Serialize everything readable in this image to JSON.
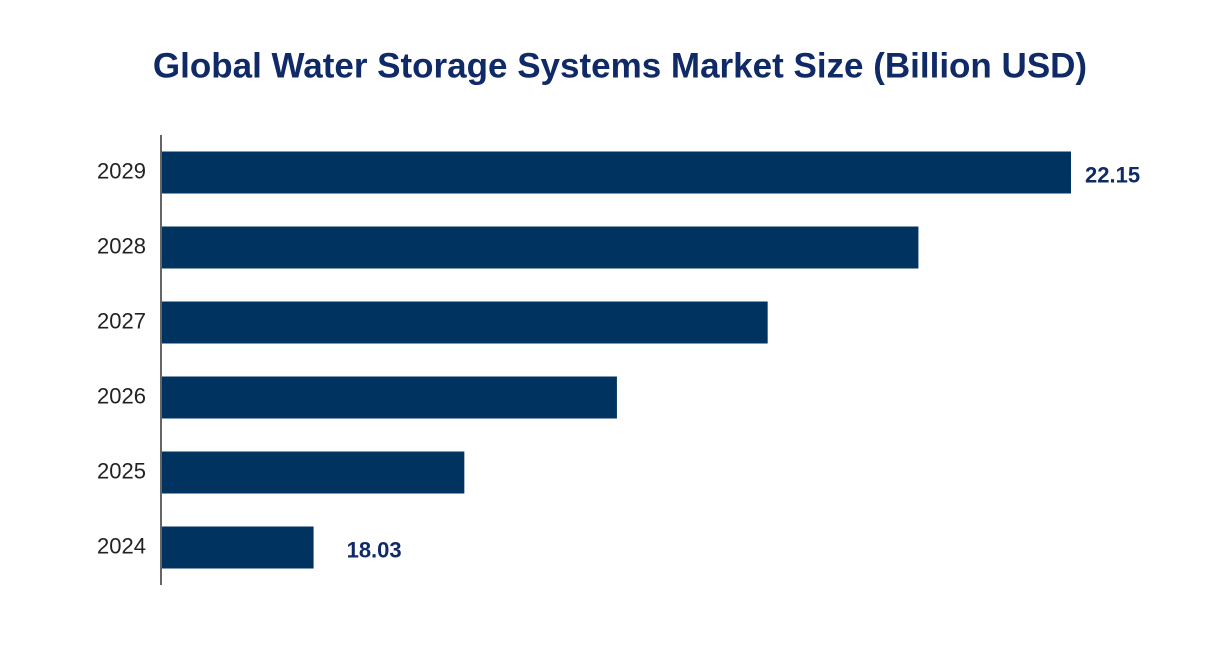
{
  "chart_data": {
    "type": "bar",
    "orientation": "horizontal",
    "title": "Global Water Storage Systems Market Size (Billion USD)",
    "categories": [
      "2024",
      "2025",
      "2026",
      "2027",
      "2028",
      "2029"
    ],
    "values": [
      18.03,
      18.85,
      19.68,
      20.5,
      21.32,
      22.15
    ],
    "value_labels": [
      "18.03",
      null,
      null,
      null,
      null,
      "22.15"
    ],
    "color": "#00335f",
    "xlim": [
      17.2,
      22.15
    ]
  }
}
